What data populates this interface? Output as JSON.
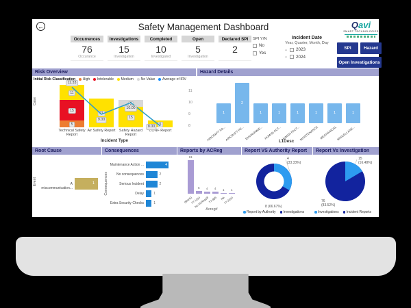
{
  "header": {
    "title": "Safety Management Dashboard",
    "logo": {
      "brand_q": "Q",
      "brand_rest": "avi",
      "tagline": "SMART TECHNOLOGIES"
    },
    "icons": {
      "back": "←",
      "chevron": "⌄"
    }
  },
  "kpi_cards": [
    {
      "label": "Occurrences",
      "value": "76",
      "sublabel": "Occurance"
    },
    {
      "label": "Investigations",
      "value": "15",
      "sublabel": "Investigation"
    },
    {
      "label": "Completed",
      "value": "10",
      "sublabel": "Investigated"
    },
    {
      "label": "Open",
      "value": "5",
      "sublabel": "Investigation"
    },
    {
      "label": "Declared SPI",
      "value": "2",
      "sublabel": ""
    }
  ],
  "filters": {
    "spi": {
      "title": "SPI Y/N",
      "options": [
        "No",
        "Yes"
      ]
    },
    "incident_date": {
      "title": "Incident Date",
      "subtitle": "Year, Quarter, Month, Day",
      "years": [
        "2023",
        "2024"
      ]
    }
  },
  "nav_buttons": {
    "spi": "SPI",
    "hazard": "Hazard",
    "open_investigations": "Open Investigations"
  },
  "colors": {
    "panel_header": "#a0a1cf",
    "button_blue": "#24388f",
    "bar_blue": "#77b7ec",
    "bar_purple": "#a99bd4",
    "bar_tan": "#c5af5e",
    "slice_light": "#2d9bf0",
    "slice_dark": "#12239e",
    "line_blue": "#2e9bd6"
  },
  "chart_data": [
    {
      "name": "risk_overview",
      "type": "bar-line",
      "title": "Risk Overview",
      "legend_title": "Initial Risk Classification",
      "legend": [
        {
          "label": "High",
          "color": "#ed7d31"
        },
        {
          "label": "Intolerable",
          "color": "#e81123"
        },
        {
          "label": "Medium",
          "color": "#ffe100"
        },
        {
          "label": "No Value",
          "color": "#d8d8d8"
        },
        {
          "label": "Average of IRV",
          "color": "#118dff"
        }
      ],
      "seg_colors": {
        "High": "#ed7d31",
        "Intolerable": "#e81123",
        "Medium": "#ffe100",
        "No Value": "#d8d8d8"
      },
      "stacks": [
        {
          "category": "Technical Safety Report",
          "segments": [
            {
              "label": "High",
              "value": 5
            },
            {
              "label": "Intolerable",
              "value": 15
            },
            {
              "label": "Medium",
              "value": 11
            }
          ]
        },
        {
          "category": "Air Safety Report",
          "segments": [
            {
              "label": "Medium",
              "value": 21
            }
          ]
        },
        {
          "category": "Safety Hazard Report",
          "segments": [
            {
              "label": "Medium",
              "value": 15
            },
            {
              "label": "No Value",
              "value": 5
            }
          ]
        },
        {
          "category": "CONF Report",
          "segments": [
            {
              "label": "Medium",
              "value": 5
            }
          ]
        }
      ],
      "line": {
        "name": "Average of IRV",
        "values": [
          11.33,
          9.0,
          10.0,
          8.0
        ],
        "labels": [
          "11.33",
          "9.00",
          "10.00",
          "8.00"
        ]
      },
      "y2_ticks": [
        11,
        10,
        9,
        8
      ],
      "xlabel": "Incident Type",
      "ylabel": "Case"
    },
    {
      "name": "hazard_details",
      "type": "bar",
      "title": "Hazard Details",
      "categories": [
        "AIRCRAFT HA...",
        "AIRCRAFT PE...",
        "ENVIRONME...",
        "HUMAN ACT...",
        "HUMAN FACT...",
        "MAINTENANCE",
        "MECHANICAL",
        "MISCELLANE..."
      ],
      "values": [
        1,
        2,
        1,
        1,
        1,
        1,
        1,
        1
      ],
      "xlabel": "L1Desc"
    },
    {
      "name": "root_cause",
      "type": "hbar",
      "title": "Root Cause",
      "categories": [
        "A miscommunication..."
      ],
      "values": [
        1
      ],
      "ylabel": "Event"
    },
    {
      "name": "consequences",
      "type": "hbar",
      "title": "Consequences",
      "categories": [
        "Maintenance Action ...",
        "No consequences",
        "Serious Incident",
        "Delay",
        "Extra Security Checks"
      ],
      "values": [
        4,
        2,
        2,
        1,
        1
      ],
      "ylabel": "Consequences"
    },
    {
      "name": "reports_by_acreg",
      "type": "bar",
      "title": "Reports by ACReg",
      "categories": [
        "(Blank)",
        "T7-1104",
        "No ACReg28",
        "T7-885",
        "NA",
        "T7-3104"
      ],
      "values": [
        61,
        5,
        4,
        4,
        1,
        1
      ],
      "xlabel": "Acreg#"
    },
    {
      "name": "report_vs_authority",
      "type": "donut",
      "title": "Report VS Authority Report",
      "slices": [
        {
          "label": "Report by Authority",
          "value": 4,
          "pct": "33.33%",
          "color": "#2d9bf0"
        },
        {
          "label": "Investigations",
          "value": 8,
          "pct": "66.67%",
          "color": "#12239e"
        }
      ]
    },
    {
      "name": "report_vs_investigation",
      "type": "pie",
      "title": "Report Vs Investigation",
      "slices": [
        {
          "label": "Investigations",
          "value": 15,
          "pct": "16.48%",
          "color": "#2d9bf0"
        },
        {
          "label": "Incident Reports",
          "value": 76,
          "pct": "83.52%",
          "color": "#12239e"
        }
      ]
    }
  ]
}
